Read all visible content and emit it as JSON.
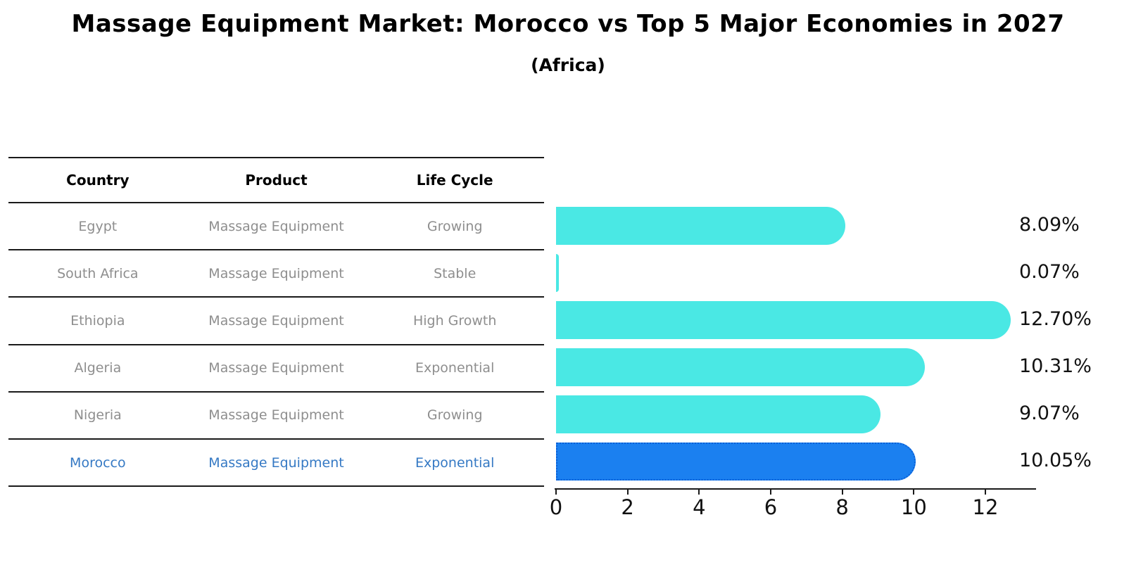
{
  "header": {
    "title": "Massage Equipment Market: Morocco vs Top 5 Major Economies in 2027",
    "subtitle": "(Africa)"
  },
  "table": {
    "columns": [
      "Country",
      "Product",
      "Life Cycle"
    ],
    "rows": [
      {
        "country": "Egypt",
        "product": "Massage Equipment",
        "life_cycle": "Growing",
        "highlight": false
      },
      {
        "country": "South Africa",
        "product": "Massage Equipment",
        "life_cycle": "Stable",
        "highlight": false
      },
      {
        "country": "Ethiopia",
        "product": "Massage Equipment",
        "life_cycle": "High Growth",
        "highlight": false
      },
      {
        "country": "Algeria",
        "product": "Massage Equipment",
        "life_cycle": "Exponential",
        "highlight": false
      },
      {
        "country": "Nigeria",
        "product": "Massage Equipment",
        "life_cycle": "Growing",
        "highlight": false
      },
      {
        "country": "Morocco",
        "product": "Massage Equipment",
        "life_cycle": "Exponential",
        "highlight": true
      }
    ]
  },
  "chart_data": {
    "type": "bar",
    "orientation": "horizontal",
    "title": "Massage Equipment Market: Morocco vs Top 5 Major Economies in 2027",
    "subtitle": "(Africa)",
    "categories": [
      "Egypt",
      "South Africa",
      "Ethiopia",
      "Algeria",
      "Nigeria",
      "Morocco"
    ],
    "values": [
      8.09,
      0.07,
      12.7,
      10.31,
      9.07,
      10.05
    ],
    "value_labels": [
      "8.09%",
      "0.07%",
      "12.70%",
      "10.31%",
      "9.07%",
      "10.05%"
    ],
    "x_ticks": [
      0,
      2,
      4,
      6,
      8,
      10,
      12
    ],
    "xlim": [
      0,
      13.4
    ],
    "grid": false,
    "legend": false,
    "highlight_index": 5,
    "bar_color": "#4ae8e4",
    "highlight_bar_color": "#1b80f0",
    "highlight_border_color": "#0a5fd6",
    "highlight_text_color": "#3579c4",
    "text_color": "#8e8e8e"
  }
}
